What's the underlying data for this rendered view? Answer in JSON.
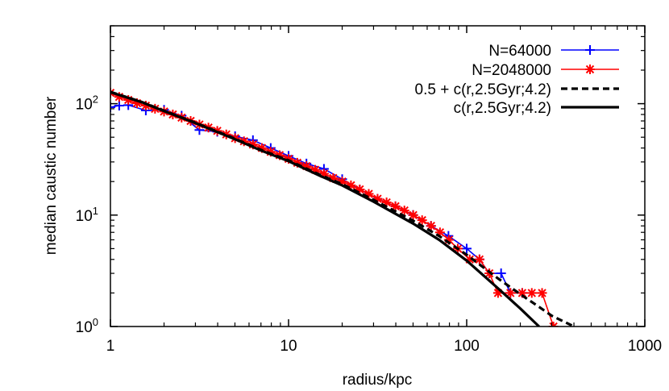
{
  "chart_data": {
    "type": "line",
    "xlabel": "radius/kpc",
    "ylabel": "median caustic number",
    "xscale": "log",
    "yscale": "log",
    "xlim": [
      1,
      1000
    ],
    "ylim": [
      1,
      500
    ],
    "x_ticks": [
      {
        "value": 1,
        "label": "1"
      },
      {
        "value": 10,
        "label": "10"
      },
      {
        "value": 100,
        "label": "100"
      },
      {
        "value": 1000,
        "label": "1000"
      }
    ],
    "y_ticks": [
      {
        "value": 1,
        "base": "10",
        "exp": "0"
      },
      {
        "value": 10,
        "base": "10",
        "exp": "1"
      },
      {
        "value": 100,
        "base": "10",
        "exp": "2"
      }
    ],
    "grid": false,
    "legend_position": "top-right",
    "series": [
      {
        "name": "N=64000",
        "color": "#0000ff",
        "style": "line-points",
        "marker": "plus",
        "points": [
          [
            1,
            93
          ],
          [
            1.12,
            96
          ],
          [
            1.26,
            97
          ],
          [
            1.58,
            87
          ],
          [
            2,
            88
          ],
          [
            2.51,
            78
          ],
          [
            3.16,
            58
          ],
          [
            3.98,
            56
          ],
          [
            5.01,
            51
          ],
          [
            6.31,
            47
          ],
          [
            7.94,
            40
          ],
          [
            10,
            34
          ],
          [
            12.6,
            29
          ],
          [
            15.8,
            26
          ],
          [
            20,
            21
          ],
          [
            25.1,
            17
          ],
          [
            31.6,
            14
          ],
          [
            39.8,
            12
          ],
          [
            50,
            10
          ],
          [
            63,
            8
          ],
          [
            79,
            6.5
          ],
          [
            100,
            5
          ],
          [
            118,
            4
          ],
          [
            134,
            3
          ],
          [
            156,
            3
          ],
          [
            176,
            2
          ],
          [
            205,
            2
          ]
        ]
      },
      {
        "name": "N=2048000",
        "color": "#ff0000",
        "style": "line-points",
        "marker": "star",
        "points": [
          [
            1,
            125
          ],
          [
            1.12,
            115
          ],
          [
            1.26,
            108
          ],
          [
            1.41,
            101
          ],
          [
            1.58,
            96
          ],
          [
            1.78,
            90
          ],
          [
            2,
            85
          ],
          [
            2.24,
            80
          ],
          [
            2.51,
            75
          ],
          [
            2.82,
            70
          ],
          [
            3.16,
            65
          ],
          [
            3.55,
            61
          ],
          [
            3.98,
            57
          ],
          [
            4.47,
            53
          ],
          [
            5.01,
            49
          ],
          [
            5.62,
            46
          ],
          [
            6.31,
            43
          ],
          [
            7.08,
            40
          ],
          [
            7.94,
            37
          ],
          [
            8.91,
            34.5
          ],
          [
            10,
            32
          ],
          [
            11.2,
            29.5
          ],
          [
            12.6,
            27.5
          ],
          [
            14.1,
            25.5
          ],
          [
            15.8,
            23.5
          ],
          [
            17.8,
            21.5
          ],
          [
            20,
            20
          ],
          [
            22.4,
            18.5
          ],
          [
            25.1,
            17
          ],
          [
            28.2,
            15.5
          ],
          [
            31.6,
            14
          ],
          [
            35.5,
            13
          ],
          [
            39.8,
            12
          ],
          [
            44.7,
            11
          ],
          [
            50.1,
            10
          ],
          [
            56.2,
            9
          ],
          [
            63.1,
            8
          ],
          [
            70.8,
            7
          ],
          [
            79.4,
            6
          ],
          [
            89.1,
            5
          ],
          [
            104,
            4
          ],
          [
            118,
            4
          ],
          [
            134,
            3
          ],
          [
            150,
            2
          ],
          [
            176,
            2
          ],
          [
            205,
            2
          ],
          [
            232,
            2
          ],
          [
            265,
            2
          ],
          [
            307,
            1
          ]
        ]
      },
      {
        "name": "0.5 + c(r,2.5Gyr;4.2)",
        "color": "#000000",
        "style": "dashed",
        "points": [
          [
            1,
            127.5
          ],
          [
            1.5,
            103.5
          ],
          [
            2,
            86.5
          ],
          [
            3,
            67.5
          ],
          [
            5,
            48.5
          ],
          [
            7,
            38.5
          ],
          [
            10,
            31
          ],
          [
            15,
            23
          ],
          [
            20,
            19
          ],
          [
            30,
            13.7
          ],
          [
            50,
            8.9
          ],
          [
            70,
            6.5
          ],
          [
            100,
            4.4
          ],
          [
            150,
            2.7
          ],
          [
            200,
            1.95
          ],
          [
            255,
            1.5
          ],
          [
            300,
            1.25
          ],
          [
            400,
            1.0
          ]
        ]
      },
      {
        "name": "c(r,2.5Gyr;4.2)",
        "color": "#000000",
        "style": "solid",
        "points": [
          [
            1,
            127
          ],
          [
            1.5,
            103
          ],
          [
            2,
            86
          ],
          [
            3,
            67
          ],
          [
            5,
            48
          ],
          [
            7,
            38
          ],
          [
            10,
            30.5
          ],
          [
            15,
            22.5
          ],
          [
            20,
            18.5
          ],
          [
            30,
            13.2
          ],
          [
            50,
            8.4
          ],
          [
            70,
            6
          ],
          [
            100,
            3.9
          ],
          [
            150,
            2.2
          ],
          [
            200,
            1.45
          ],
          [
            255,
            1.0
          ]
        ]
      }
    ]
  }
}
